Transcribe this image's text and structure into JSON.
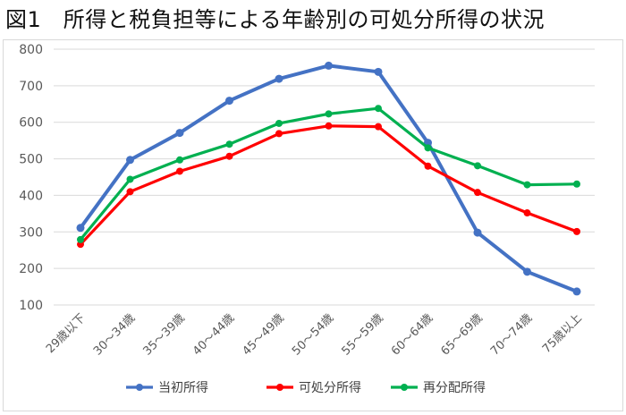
{
  "title": "図1　所得と税負担等による年齢別の可処分所得の状況",
  "chart_data": {
    "type": "line",
    "title": "",
    "xlabel": "",
    "ylabel": "",
    "ylim": [
      100,
      800
    ],
    "yticks": [
      800,
      700,
      600,
      500,
      400,
      300,
      200,
      100
    ],
    "grid": true,
    "legend_position": "bottom",
    "categories": [
      "29歳以下",
      "30～34歳",
      "35～39歳",
      "40～44歳",
      "45～49歳",
      "50～54歳",
      "55～59歳",
      "60～64歳",
      "65～69歳",
      "70～74歳",
      "75歳以上"
    ],
    "series": [
      {
        "name": "当初所得",
        "color": "#4472c4",
        "values": [
          311,
          497,
          571,
          659,
          719,
          755,
          738,
          544,
          298,
          191,
          137
        ]
      },
      {
        "name": "可処分所得",
        "color": "#ff0000",
        "values": [
          266,
          410,
          466,
          507,
          569,
          590,
          588,
          480,
          408,
          352,
          301
        ]
      },
      {
        "name": "再分配所得",
        "color": "#00b050",
        "values": [
          279,
          444,
          497,
          540,
          597,
          623,
          638,
          530,
          481,
          429,
          431
        ]
      }
    ]
  }
}
